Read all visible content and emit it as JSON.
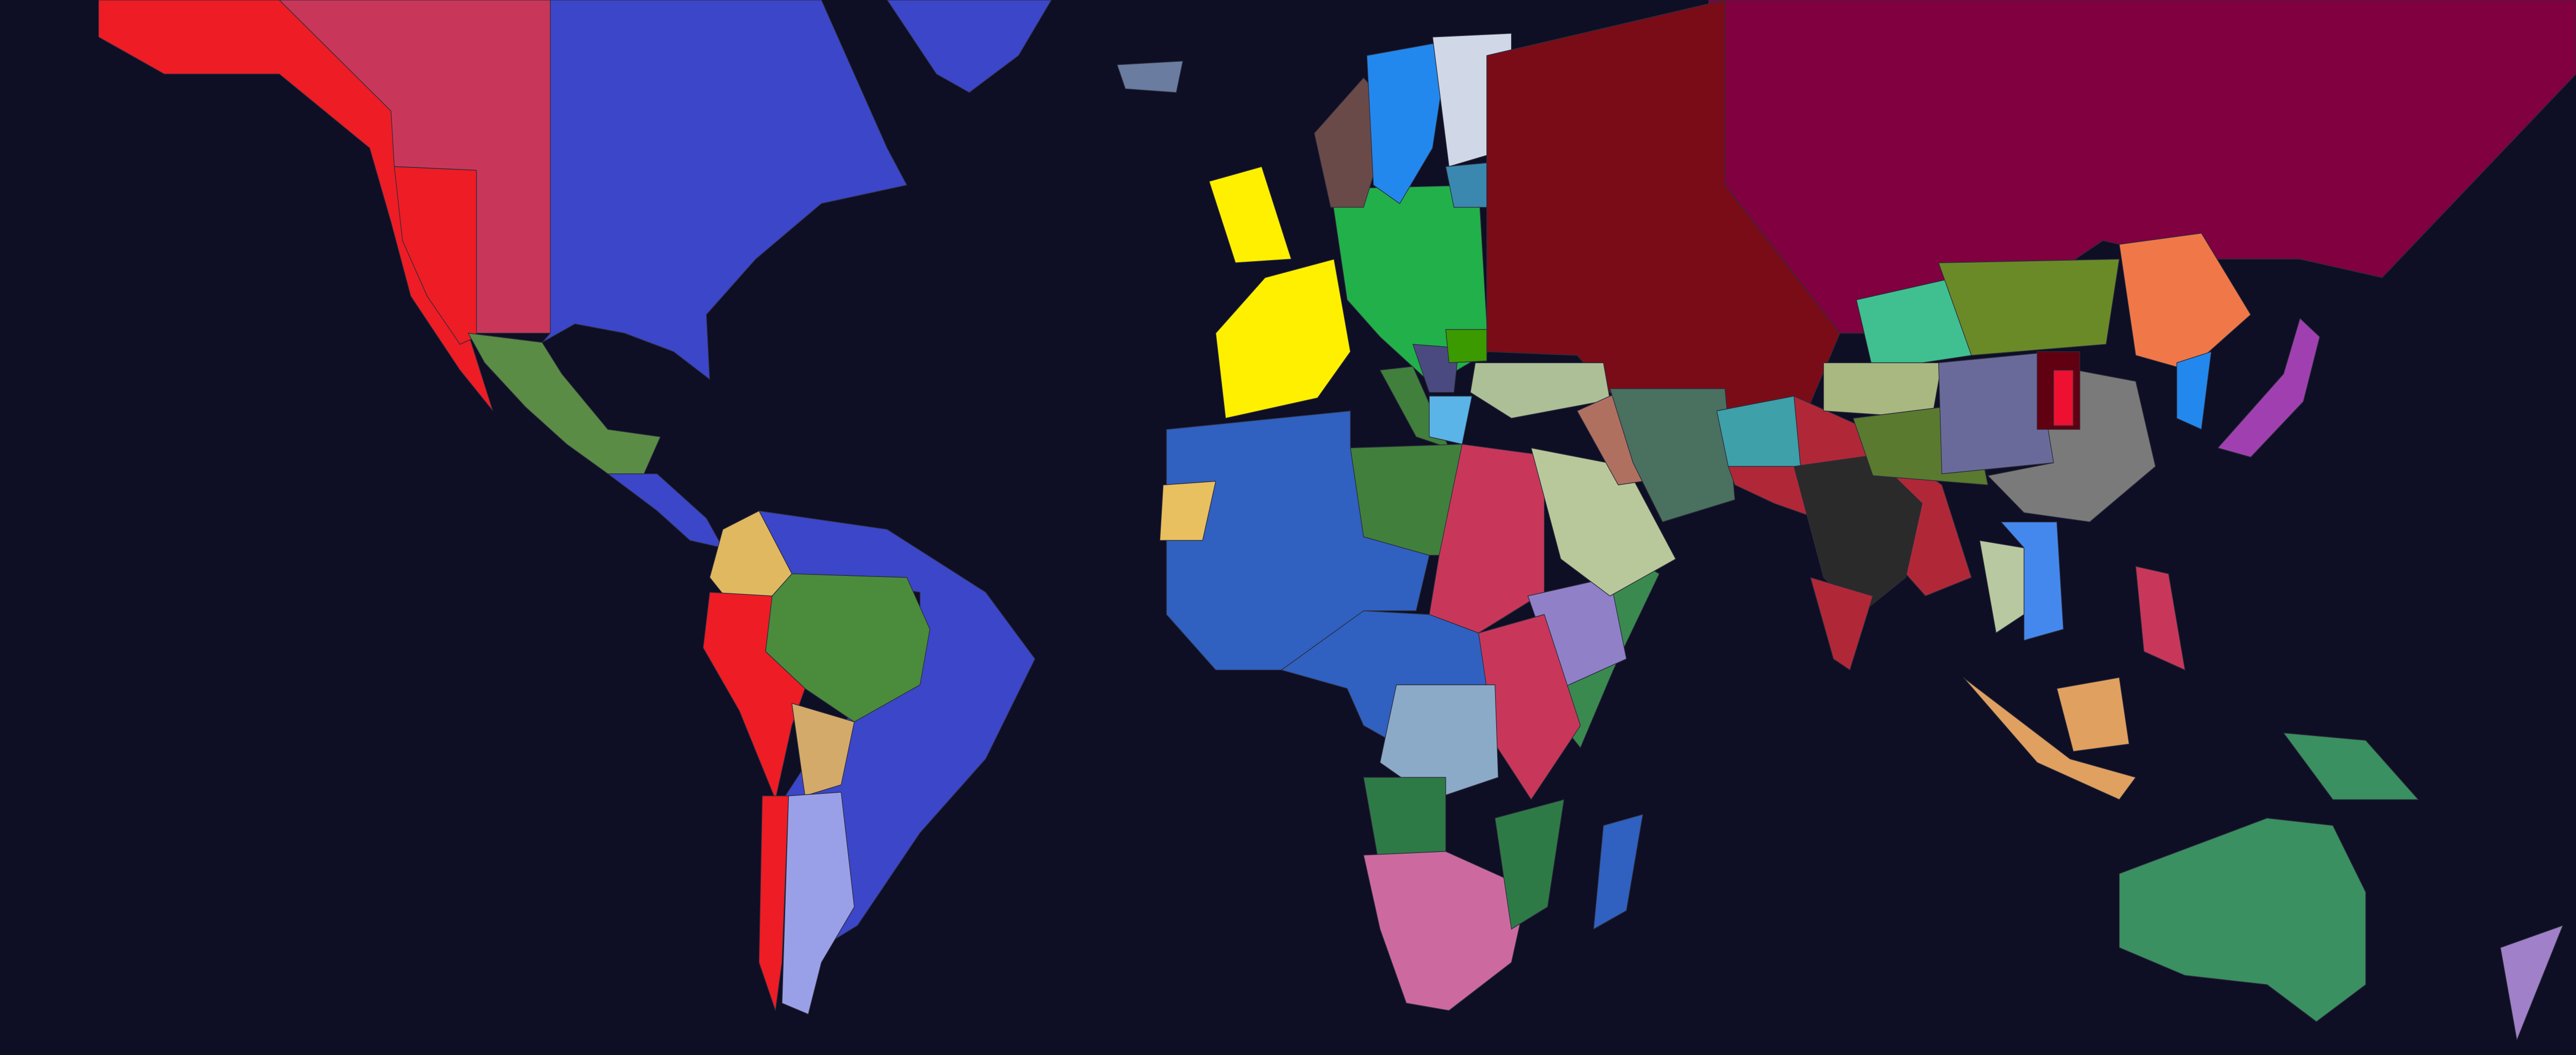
{
  "map": {
    "type": "political-world-map",
    "background": "#0e0e24",
    "border_color": "#2c2c3c",
    "regions": {
      "pacific_northamerica": "#ee1c25",
      "interior_northamerica": "#c8375a",
      "eastern_northamerica": "#3c46c8",
      "greenland": "#3c46c8",
      "iceland": "#6a7ca0",
      "mexico": "#5a8c46",
      "central_america": "#3c46c8",
      "colombia": "#e0b860",
      "brazil_east": "#3c46c8",
      "amazon": "#4a8c3c",
      "peru": "#ee1c25",
      "bolivia": "#d4aa6a",
      "chile": "#ee1c25",
      "argentina": "#9aa0e8",
      "britain": "#fff000",
      "france_iberia": "#fff000",
      "central_europe": "#22b04a",
      "norway": "#6a4a48",
      "sweden": "#2288ee",
      "finland": "#d0d8e8",
      "baltic": "#3a88b0",
      "russia_west": "#7a0c18",
      "siberia": "#800040",
      "turkey": "#adbf96",
      "italy": "#40803c",
      "balkans": "#4a4a80",
      "romania": "#3a9a00",
      "greece": "#5ab4e8",
      "north_africa": "#3060c0",
      "libya": "#40803c",
      "egypt_sudan": "#c8375a",
      "west_africa_coast": "#e8c060",
      "central_africa": "#3060c0",
      "ethiopia": "#9080c8",
      "east_africa_coast": "#3a8a50",
      "east_africa": "#c8375a",
      "congo": "#8aaac8",
      "angola": "#2e7a46",
      "southern_africa": "#cc6aa0",
      "mozambique": "#2e7a46",
      "madagascar": "#3060c0",
      "arabia": "#b8c89a",
      "iraq": "#b07060",
      "iran": "#4a7060",
      "afghanistan": "#3ea0a8",
      "north_india": "#b02838",
      "india_central": "#2a2a2a",
      "south_india": "#b02838",
      "kazakh": "#40c090",
      "mongolia": "#6a8a28",
      "xinjiang": "#a8b880",
      "tibet": "#5a7a30",
      "qinghai": "#6a6a9a",
      "china": "#7a7a7a",
      "manchuria": "#f07848",
      "shanxi_dark": "#600010",
      "shanxi_red": "#ee1030",
      "korea": "#2288ee",
      "japan": "#a040b0",
      "vietnam": "#4488ee",
      "thailand": "#b8c8a0",
      "indonesia": "#e0a060",
      "borneo": "#e0a060",
      "philippines": "#c8375a",
      "new_guinea": "#3a9060",
      "australia": "#3a9060",
      "new_zealand": "#a080c8"
    }
  }
}
